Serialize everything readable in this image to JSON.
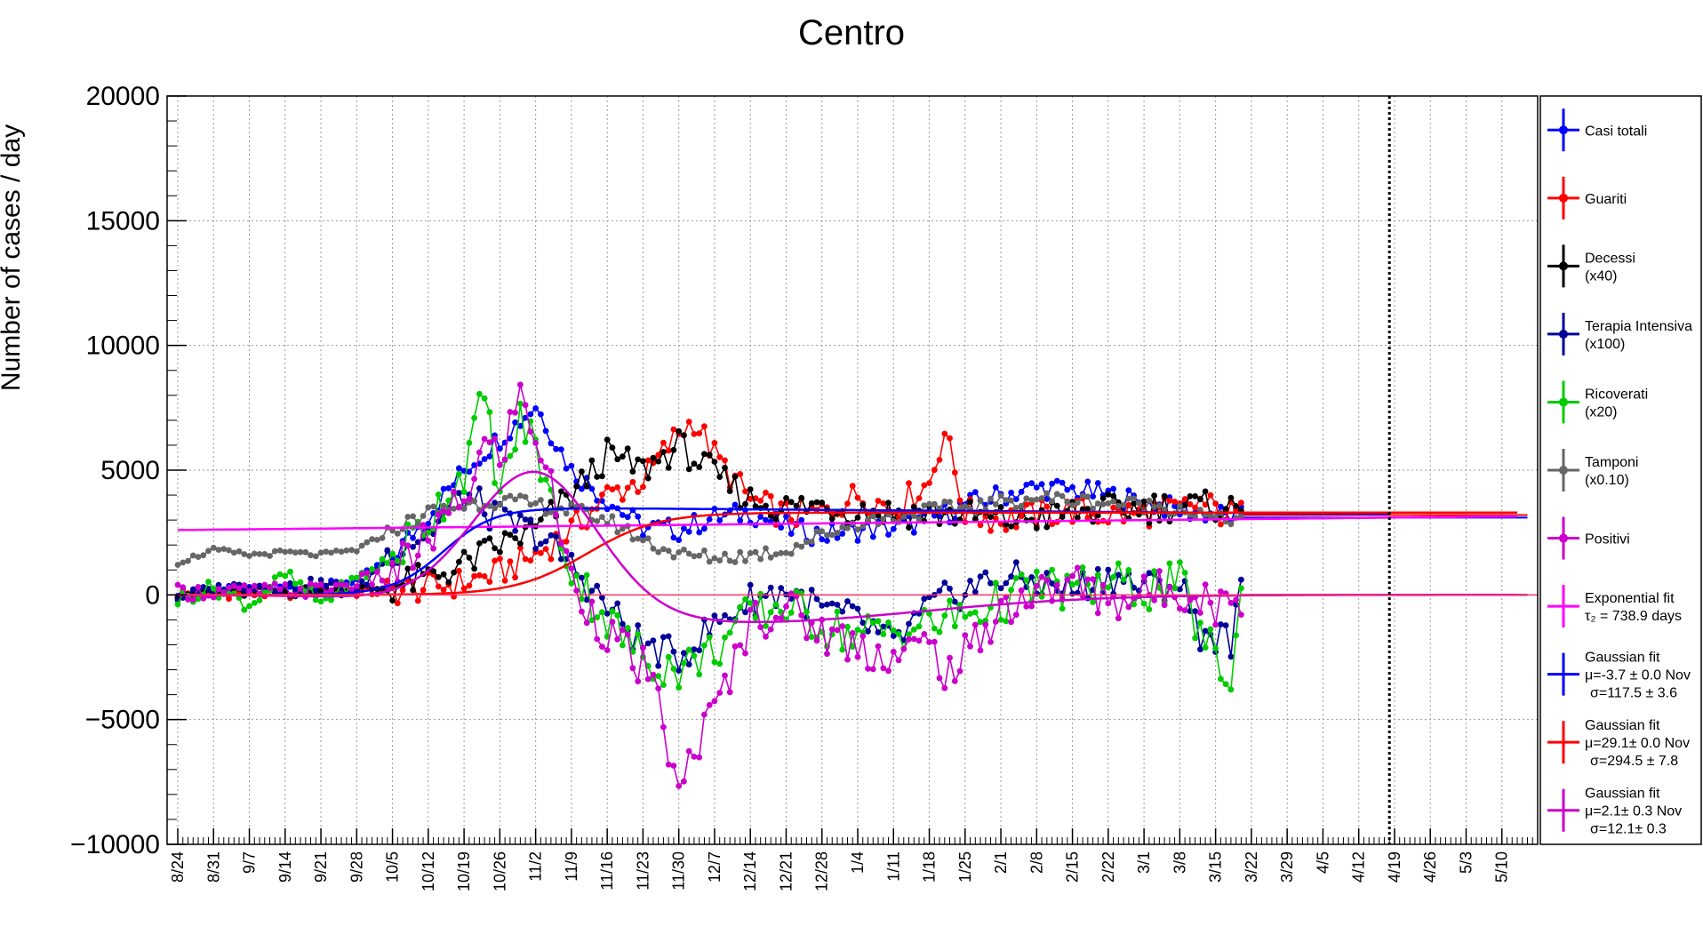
{
  "chart_data": {
    "type": "line",
    "title": "Centro",
    "ylabel": "Number of cases / day",
    "xlabel": "",
    "ylim": [
      -10000,
      20000
    ],
    "yticks": [
      "20000",
      "15000",
      "10000",
      "5000",
      "0",
      "−5000",
      "−10000"
    ],
    "yvals": [
      20000,
      15000,
      10000,
      5000,
      0,
      -5000,
      -10000
    ],
    "xlim_days": [
      0,
      266
    ],
    "x_labels": [
      "8/24",
      "8/31",
      "9/7",
      "9/14",
      "9/21",
      "9/28",
      "10/5",
      "10/12",
      "10/19",
      "10/26",
      "11/2",
      "11/9",
      "11/16",
      "11/23",
      "11/30",
      "12/7",
      "12/14",
      "12/21",
      "12/28",
      "1/4",
      "1/11",
      "1/18",
      "1/25",
      "2/1",
      "2/8",
      "2/15",
      "2/22",
      "3/1",
      "3/8",
      "3/15",
      "3/22",
      "3/29",
      "4/5",
      "4/12",
      "4/19",
      "4/26",
      "5/3",
      "5/10"
    ],
    "grid": true,
    "legend_position": "right",
    "vertical_marker_day": 237,
    "series": [
      {
        "name": "Casi totali",
        "color": "#0000ff",
        "anchors": [
          [
            0,
            120
          ],
          [
            7,
            200
          ],
          [
            14,
            220
          ],
          [
            21,
            260
          ],
          [
            28,
            350
          ],
          [
            35,
            600
          ],
          [
            42,
            1500
          ],
          [
            49,
            3200
          ],
          [
            56,
            5000
          ],
          [
            63,
            6300
          ],
          [
            67,
            7000
          ],
          [
            70,
            7600
          ],
          [
            73,
            6500
          ],
          [
            77,
            5000
          ],
          [
            84,
            3800
          ],
          [
            91,
            2700
          ],
          [
            98,
            2600
          ],
          [
            105,
            3100
          ],
          [
            112,
            3300
          ],
          [
            119,
            2700
          ],
          [
            126,
            2400
          ],
          [
            133,
            2600
          ],
          [
            140,
            2700
          ],
          [
            147,
            3000
          ],
          [
            154,
            3600
          ],
          [
            161,
            4000
          ],
          [
            168,
            4300
          ],
          [
            175,
            4200
          ],
          [
            182,
            4000
          ],
          [
            189,
            3700
          ],
          [
            196,
            3400
          ],
          [
            200,
            3300
          ],
          [
            204,
            3200
          ],
          [
            208,
            3100
          ]
        ]
      },
      {
        "name": "Guariti",
        "color": "#ff0000",
        "anchors": [
          [
            0,
            30
          ],
          [
            14,
            50
          ],
          [
            28,
            80
          ],
          [
            42,
            150
          ],
          [
            49,
            300
          ],
          [
            56,
            500
          ],
          [
            63,
            900
          ],
          [
            70,
            1600
          ],
          [
            77,
            2600
          ],
          [
            84,
            4000
          ],
          [
            91,
            4600
          ],
          [
            98,
            6500
          ],
          [
            101,
            7000
          ],
          [
            105,
            5600
          ],
          [
            112,
            3800
          ],
          [
            119,
            3200
          ],
          [
            126,
            3300
          ],
          [
            133,
            4000
          ],
          [
            140,
            3500
          ],
          [
            147,
            4500
          ],
          [
            150,
            6600
          ],
          [
            154,
            3300
          ],
          [
            161,
            3000
          ],
          [
            168,
            3200
          ],
          [
            175,
            3400
          ],
          [
            182,
            3200
          ],
          [
            189,
            3300
          ],
          [
            196,
            3400
          ],
          [
            200,
            3700
          ],
          [
            204,
            3300
          ],
          [
            208,
            3200
          ]
        ]
      },
      {
        "name": "Decessi",
        "color": "#000000",
        "note": "(x40)",
        "anchors": [
          [
            0,
            80
          ],
          [
            14,
            100
          ],
          [
            28,
            150
          ],
          [
            42,
            300
          ],
          [
            49,
            700
          ],
          [
            56,
            1200
          ],
          [
            63,
            2000
          ],
          [
            70,
            2600
          ],
          [
            77,
            4000
          ],
          [
            84,
            5600
          ],
          [
            91,
            5000
          ],
          [
            98,
            6000
          ],
          [
            105,
            4800
          ],
          [
            112,
            3800
          ],
          [
            119,
            3500
          ],
          [
            126,
            3600
          ],
          [
            133,
            3400
          ],
          [
            140,
            3300
          ],
          [
            147,
            3300
          ],
          [
            154,
            3200
          ],
          [
            161,
            3000
          ],
          [
            168,
            3100
          ],
          [
            175,
            3300
          ],
          [
            182,
            3400
          ],
          [
            189,
            3500
          ],
          [
            196,
            3600
          ],
          [
            200,
            3500
          ],
          [
            204,
            3600
          ],
          [
            208,
            3300
          ]
        ]
      },
      {
        "name": "Terapia Intensiva",
        "color": "#000099",
        "note": "(x100)",
        "anchors": [
          [
            0,
            -100
          ],
          [
            7,
            200
          ],
          [
            14,
            400
          ],
          [
            21,
            300
          ],
          [
            28,
            450
          ],
          [
            35,
            100
          ],
          [
            42,
            1800
          ],
          [
            49,
            2500
          ],
          [
            56,
            4000
          ],
          [
            63,
            3000
          ],
          [
            70,
            2500
          ],
          [
            77,
            1200
          ],
          [
            84,
            -500
          ],
          [
            91,
            -2000
          ],
          [
            98,
            -2500
          ],
          [
            105,
            -1200
          ],
          [
            112,
            -200
          ],
          [
            119,
            200
          ],
          [
            126,
            -600
          ],
          [
            133,
            -1000
          ],
          [
            140,
            -2000
          ],
          [
            147,
            -500
          ],
          [
            154,
            200
          ],
          [
            161,
            700
          ],
          [
            168,
            500
          ],
          [
            175,
            200
          ],
          [
            182,
            800
          ],
          [
            189,
            300
          ],
          [
            196,
            500
          ],
          [
            200,
            -1500
          ],
          [
            204,
            -1700
          ],
          [
            206,
            -1800
          ],
          [
            208,
            0
          ]
        ]
      },
      {
        "name": "Ricoverati",
        "color": "#00cc00",
        "note": "(x20)",
        "anchors": [
          [
            0,
            -200
          ],
          [
            7,
            300
          ],
          [
            14,
            -400
          ],
          [
            21,
            800
          ],
          [
            28,
            -300
          ],
          [
            35,
            600
          ],
          [
            42,
            1500
          ],
          [
            49,
            3000
          ],
          [
            56,
            5000
          ],
          [
            60,
            8000
          ],
          [
            63,
            4000
          ],
          [
            67,
            7000
          ],
          [
            70,
            6000
          ],
          [
            74,
            3000
          ],
          [
            77,
            1000
          ],
          [
            84,
            -1000
          ],
          [
            91,
            -2500
          ],
          [
            98,
            -3000
          ],
          [
            105,
            -2200
          ],
          [
            112,
            -800
          ],
          [
            119,
            -400
          ],
          [
            126,
            -1200
          ],
          [
            133,
            -1600
          ],
          [
            140,
            -1400
          ],
          [
            147,
            -1200
          ],
          [
            154,
            -800
          ],
          [
            161,
            -300
          ],
          [
            168,
            300
          ],
          [
            175,
            200
          ],
          [
            182,
            500
          ],
          [
            189,
            200
          ],
          [
            196,
            500
          ],
          [
            200,
            -1500
          ],
          [
            204,
            -2800
          ],
          [
            206,
            -3700
          ],
          [
            208,
            0
          ]
        ]
      },
      {
        "name": "Tamponi",
        "color": "#666666",
        "note": "(x0.10)",
        "anchors": [
          [
            0,
            1300
          ],
          [
            7,
            1800
          ],
          [
            14,
            1600
          ],
          [
            21,
            1700
          ],
          [
            28,
            1600
          ],
          [
            35,
            1800
          ],
          [
            42,
            2600
          ],
          [
            49,
            3300
          ],
          [
            56,
            3600
          ],
          [
            63,
            3800
          ],
          [
            70,
            3600
          ],
          [
            77,
            3400
          ],
          [
            84,
            3000
          ],
          [
            91,
            2200
          ],
          [
            98,
            1600
          ],
          [
            105,
            1500
          ],
          [
            112,
            1600
          ],
          [
            119,
            1800
          ],
          [
            126,
            2400
          ],
          [
            133,
            2900
          ],
          [
            140,
            3100
          ],
          [
            147,
            3400
          ],
          [
            154,
            3500
          ],
          [
            161,
            3700
          ],
          [
            168,
            3900
          ],
          [
            175,
            3800
          ],
          [
            182,
            3700
          ],
          [
            189,
            3600
          ],
          [
            196,
            3500
          ],
          [
            200,
            3200
          ],
          [
            204,
            3000
          ],
          [
            208,
            3100
          ]
        ]
      },
      {
        "name": "Positivi",
        "color": "#cc00cc",
        "anchors": [
          [
            0,
            100
          ],
          [
            14,
            150
          ],
          [
            28,
            200
          ],
          [
            42,
            800
          ],
          [
            49,
            2200
          ],
          [
            56,
            3800
          ],
          [
            60,
            6000
          ],
          [
            63,
            5500
          ],
          [
            67,
            8000
          ],
          [
            70,
            6500
          ],
          [
            74,
            3500
          ],
          [
            77,
            500
          ],
          [
            84,
            -1500
          ],
          [
            91,
            -3000
          ],
          [
            95,
            -5000
          ],
          [
            98,
            -8300
          ],
          [
            101,
            -6000
          ],
          [
            105,
            -4800
          ],
          [
            112,
            -1000
          ],
          [
            119,
            -500
          ],
          [
            126,
            -1500
          ],
          [
            133,
            -2000
          ],
          [
            140,
            -2500
          ],
          [
            147,
            -2000
          ],
          [
            151,
            -3200
          ],
          [
            154,
            -2500
          ],
          [
            161,
            -500
          ],
          [
            168,
            0
          ],
          [
            175,
            500
          ],
          [
            182,
            -200
          ],
          [
            189,
            0
          ],
          [
            196,
            300
          ],
          [
            200,
            0
          ],
          [
            204,
            -500
          ],
          [
            208,
            0
          ]
        ]
      }
    ],
    "fits": [
      {
        "name": "Exponential fit",
        "color": "#ff00ff",
        "params": [
          "τ₂ = 738.9 days"
        ]
      },
      {
        "name": "Gaussian fit",
        "color": "#0000ff",
        "params": [
          "μ=-3.7 ± 0.0 Nov",
          "σ=117.5 ± 3.6"
        ]
      },
      {
        "name": "Gaussian fit",
        "color": "#ff0000",
        "params": [
          "μ=29.1± 0.0 Nov",
          "σ=294.5 ± 7.8"
        ]
      },
      {
        "name": "Gaussian fit",
        "color": "#cc00cc",
        "params": [
          "μ=2.1± 0.3 Nov",
          "σ=12.1± 0.3"
        ]
      }
    ]
  },
  "legend": [
    {
      "label": "Casi totali",
      "sub": "",
      "color": "#0000ff",
      "marker": true
    },
    {
      "label": "Guariti",
      "sub": "",
      "color": "#ff0000",
      "marker": true
    },
    {
      "label": "Decessi",
      "sub": "(x40)",
      "color": "#000000",
      "marker": true
    },
    {
      "label": "Terapia Intensiva",
      "sub": "(x100)",
      "color": "#000099",
      "marker": true
    },
    {
      "label": "Ricoverati",
      "sub": "(x20)",
      "color": "#00cc00",
      "marker": true
    },
    {
      "label": "Tamponi",
      "sub": "(x0.10)",
      "color": "#666666",
      "marker": true
    },
    {
      "label": "Positivi",
      "sub": "",
      "color": "#cc00cc",
      "marker": true
    },
    {
      "label": "Exponential fit",
      "sub": "τ₂ = 738.9 days",
      "sub2": "",
      "color": "#ff00ff",
      "marker": false
    },
    {
      "label": "Gaussian fit",
      "sub": "μ=-3.7 ± 0.0 Nov",
      "sub2": "σ=117.5 ± 3.6",
      "color": "#0000ff",
      "marker": false
    },
    {
      "label": "Gaussian fit",
      "sub": "μ=29.1± 0.0 Nov",
      "sub2": "σ=294.5 ± 7.8",
      "color": "#ff0000",
      "marker": false
    },
    {
      "label": "Gaussian fit",
      "sub": "μ=2.1± 0.3 Nov",
      "sub2": "σ=12.1± 0.3",
      "color": "#cc00cc",
      "marker": false
    }
  ]
}
